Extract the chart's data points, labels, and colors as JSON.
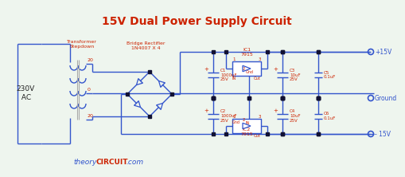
{
  "title": "15V Dual Power Supply Circuit",
  "title_color": "#cc2200",
  "title_fontsize": 10,
  "bg_color": "#eef5ee",
  "wire_color": "#3355cc",
  "label_color": "#cc2200",
  "text_color": "#222222",
  "watermark_color": "#3355cc",
  "watermark2_color": "#cc2200",
  "ac_label": "230V\n AC",
  "transformer_label": "Transformer\nStepdown",
  "bridge_label": "Bridge Rectifier\n1N4007 X 4",
  "c1_label": "C1\n1000uF\n25V",
  "c2_label": "C2\n1000uF\n25V",
  "c3_label": "C3\n10uF\n25V",
  "c4_label": "C4\n10uF\n25V",
  "c5_label": "C5\n0.1uF",
  "c6_label": "C6\n0.1uF",
  "ic1_label": "IC1\n7915",
  "ic2_label": "IC2\n7915",
  "plus15v": "+15V",
  "minus15v": "- 15V",
  "ground": "Ground",
  "tap20a": "20",
  "tap0": "0",
  "tap20b": "20"
}
